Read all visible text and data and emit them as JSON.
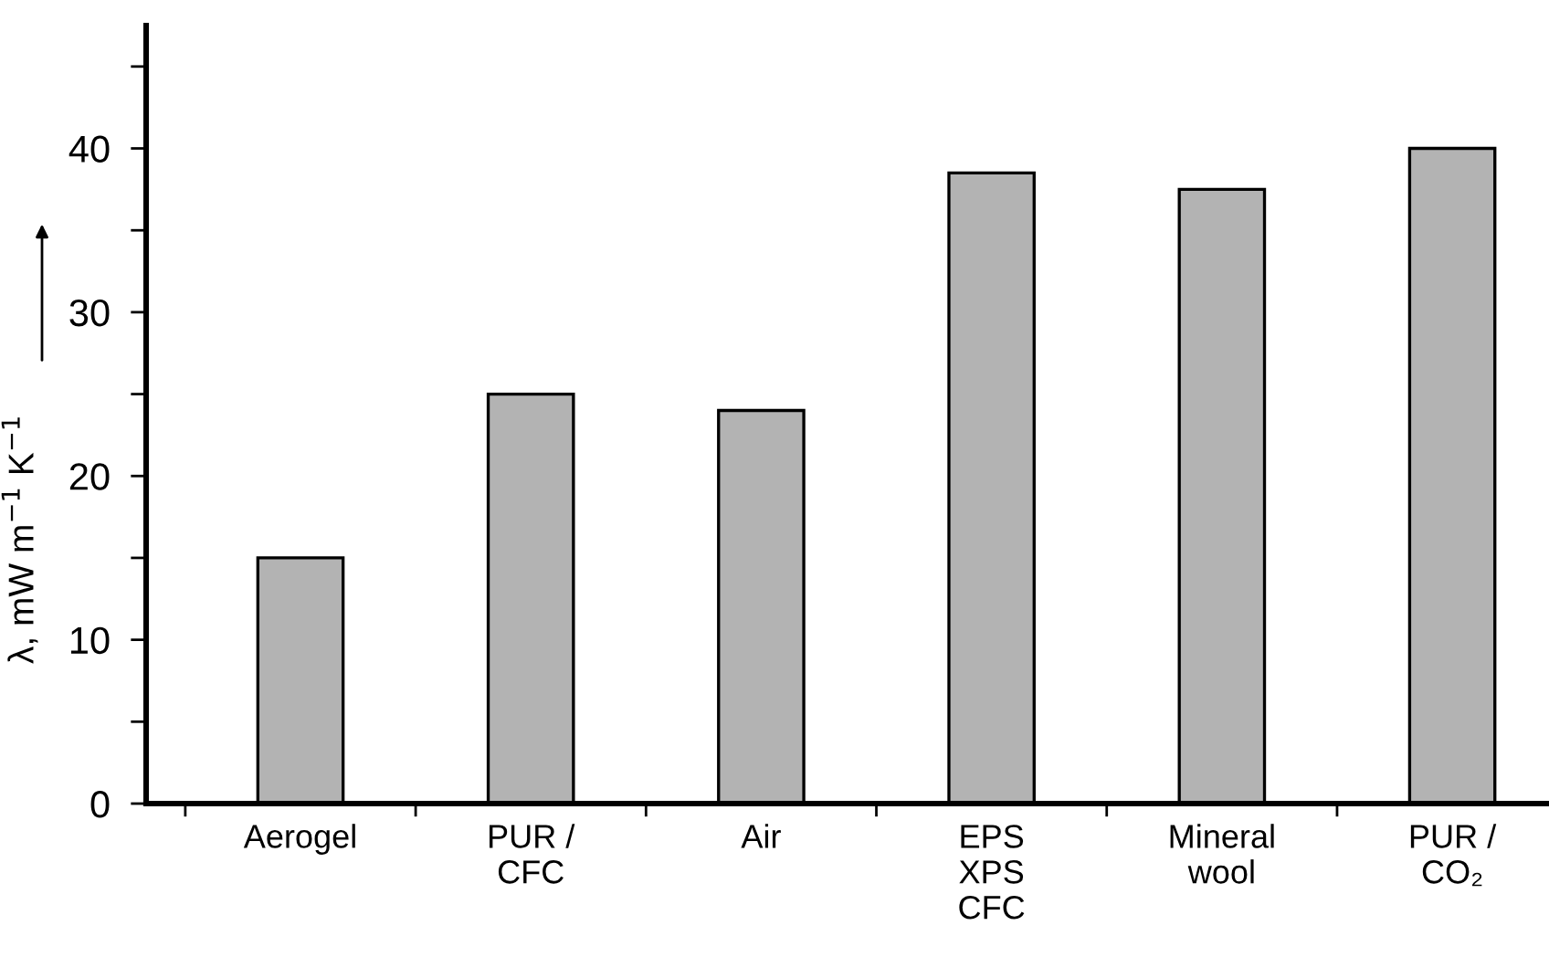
{
  "chart_data": {
    "type": "bar",
    "categories": [
      "Aerogel",
      "PUR /\nCFC",
      "Air",
      "EPS\nXPS\nCFC",
      "Mineral\nwool",
      "PUR /\nCO₂"
    ],
    "values": [
      15,
      25,
      24,
      38.5,
      37.5,
      40
    ],
    "color": "#b3b3b3",
    "ylabel": "λ, mW m$^{−1}$ K$^{−1}$",
    "ylim": [
      0,
      47.5
    ],
    "yticks": [
      0,
      {
        "value": 5,
        "label": null
      },
      10,
      {
        "value": 15,
        "label": null
      },
      20,
      {
        "value": 25,
        "label": null
      },
      30,
      {
        "value": 35,
        "label": null
      },
      40,
      {
        "value": 45,
        "label": null
      }
    ],
    "grid": false,
    "legend": false
  }
}
